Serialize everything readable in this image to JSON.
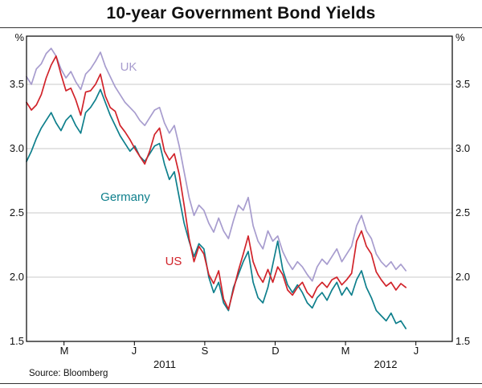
{
  "chart": {
    "title": "10-year Government Bond Yields",
    "unit_left": "%",
    "unit_right": "%",
    "source": "Source: Bloomberg",
    "year_labels": [
      {
        "text": "2011",
        "x_month": 6.3
      },
      {
        "text": "2012",
        "x_month": 15.7
      }
    ]
  },
  "chart_data": {
    "type": "line",
    "title": "10-year Government Bond Yields",
    "ylabel": "%",
    "x_unit": "months since 2011-01-01",
    "x_start": 0.4,
    "x_step": 0.21,
    "xlim": [
      0.4,
      18.55
    ],
    "ylim": [
      1.5,
      3.875
    ],
    "y_ticks": [
      1.5,
      2.0,
      2.5,
      3.0,
      3.5
    ],
    "grid": "horizontal",
    "x_ticks": [
      {
        "label": "M",
        "month": 2
      },
      {
        "label": "J",
        "month": 5
      },
      {
        "label": "S",
        "month": 8
      },
      {
        "label": "D",
        "month": 11
      },
      {
        "label": "M",
        "month": 14
      },
      {
        "label": "J",
        "month": 17
      }
    ],
    "series": [
      {
        "name": "UK",
        "color": "#a79cce",
        "label": {
          "x_month": 4.75,
          "y": 3.63
        },
        "values": [
          3.56,
          3.5,
          3.62,
          3.66,
          3.74,
          3.78,
          3.72,
          3.62,
          3.55,
          3.6,
          3.52,
          3.46,
          3.58,
          3.62,
          3.68,
          3.75,
          3.64,
          3.56,
          3.48,
          3.42,
          3.36,
          3.32,
          3.28,
          3.22,
          3.18,
          3.24,
          3.3,
          3.32,
          3.2,
          3.12,
          3.18,
          3.02,
          2.82,
          2.62,
          2.48,
          2.56,
          2.52,
          2.42,
          2.35,
          2.46,
          2.36,
          2.3,
          2.44,
          2.56,
          2.52,
          2.62,
          2.4,
          2.28,
          2.22,
          2.36,
          2.28,
          2.32,
          2.2,
          2.12,
          2.06,
          2.12,
          2.08,
          2.02,
          1.97,
          2.08,
          2.14,
          2.1,
          2.16,
          2.22,
          2.12,
          2.18,
          2.24,
          2.4,
          2.48,
          2.36,
          2.3,
          2.18,
          2.12,
          2.08,
          2.12,
          2.06,
          2.1,
          2.05
        ]
      },
      {
        "name": "Germany",
        "color": "#0e7f8c",
        "label": {
          "x_month": 4.6,
          "y": 2.62
        },
        "values": [
          2.9,
          2.98,
          3.08,
          3.16,
          3.22,
          3.28,
          3.2,
          3.14,
          3.22,
          3.26,
          3.18,
          3.12,
          3.28,
          3.32,
          3.38,
          3.46,
          3.36,
          3.26,
          3.18,
          3.1,
          3.04,
          2.98,
          3.02,
          2.94,
          2.9,
          2.96,
          3.02,
          3.04,
          2.88,
          2.76,
          2.82,
          2.62,
          2.42,
          2.28,
          2.16,
          2.26,
          2.22,
          2.0,
          1.88,
          1.96,
          1.8,
          1.74,
          1.92,
          2.02,
          2.12,
          2.2,
          1.96,
          1.84,
          1.8,
          1.92,
          2.1,
          2.28,
          2.06,
          1.94,
          1.88,
          1.94,
          1.88,
          1.8,
          1.76,
          1.84,
          1.88,
          1.82,
          1.9,
          1.96,
          1.86,
          1.92,
          1.86,
          1.98,
          2.05,
          1.92,
          1.84,
          1.74,
          1.7,
          1.66,
          1.72,
          1.64,
          1.66,
          1.6
        ]
      },
      {
        "name": "US",
        "color": "#d1232a",
        "label": {
          "x_month": 6.65,
          "y": 2.12
        },
        "values": [
          3.36,
          3.3,
          3.34,
          3.42,
          3.55,
          3.65,
          3.72,
          3.58,
          3.45,
          3.47,
          3.38,
          3.26,
          3.44,
          3.45,
          3.5,
          3.58,
          3.41,
          3.32,
          3.29,
          3.18,
          3.13,
          3.07,
          3.0,
          2.94,
          2.88,
          2.98,
          3.11,
          3.16,
          2.98,
          2.91,
          2.96,
          2.8,
          2.56,
          2.3,
          2.12,
          2.24,
          2.18,
          2.02,
          1.95,
          2.05,
          1.83,
          1.75,
          1.9,
          2.05,
          2.18,
          2.32,
          2.12,
          2.02,
          1.96,
          2.06,
          1.96,
          2.08,
          2.02,
          1.9,
          1.86,
          1.92,
          1.96,
          1.88,
          1.84,
          1.92,
          1.96,
          1.92,
          1.98,
          2.0,
          1.94,
          1.98,
          2.03,
          2.28,
          2.36,
          2.24,
          2.18,
          2.04,
          1.98,
          1.93,
          1.96,
          1.9,
          1.95,
          1.92
        ]
      }
    ]
  }
}
